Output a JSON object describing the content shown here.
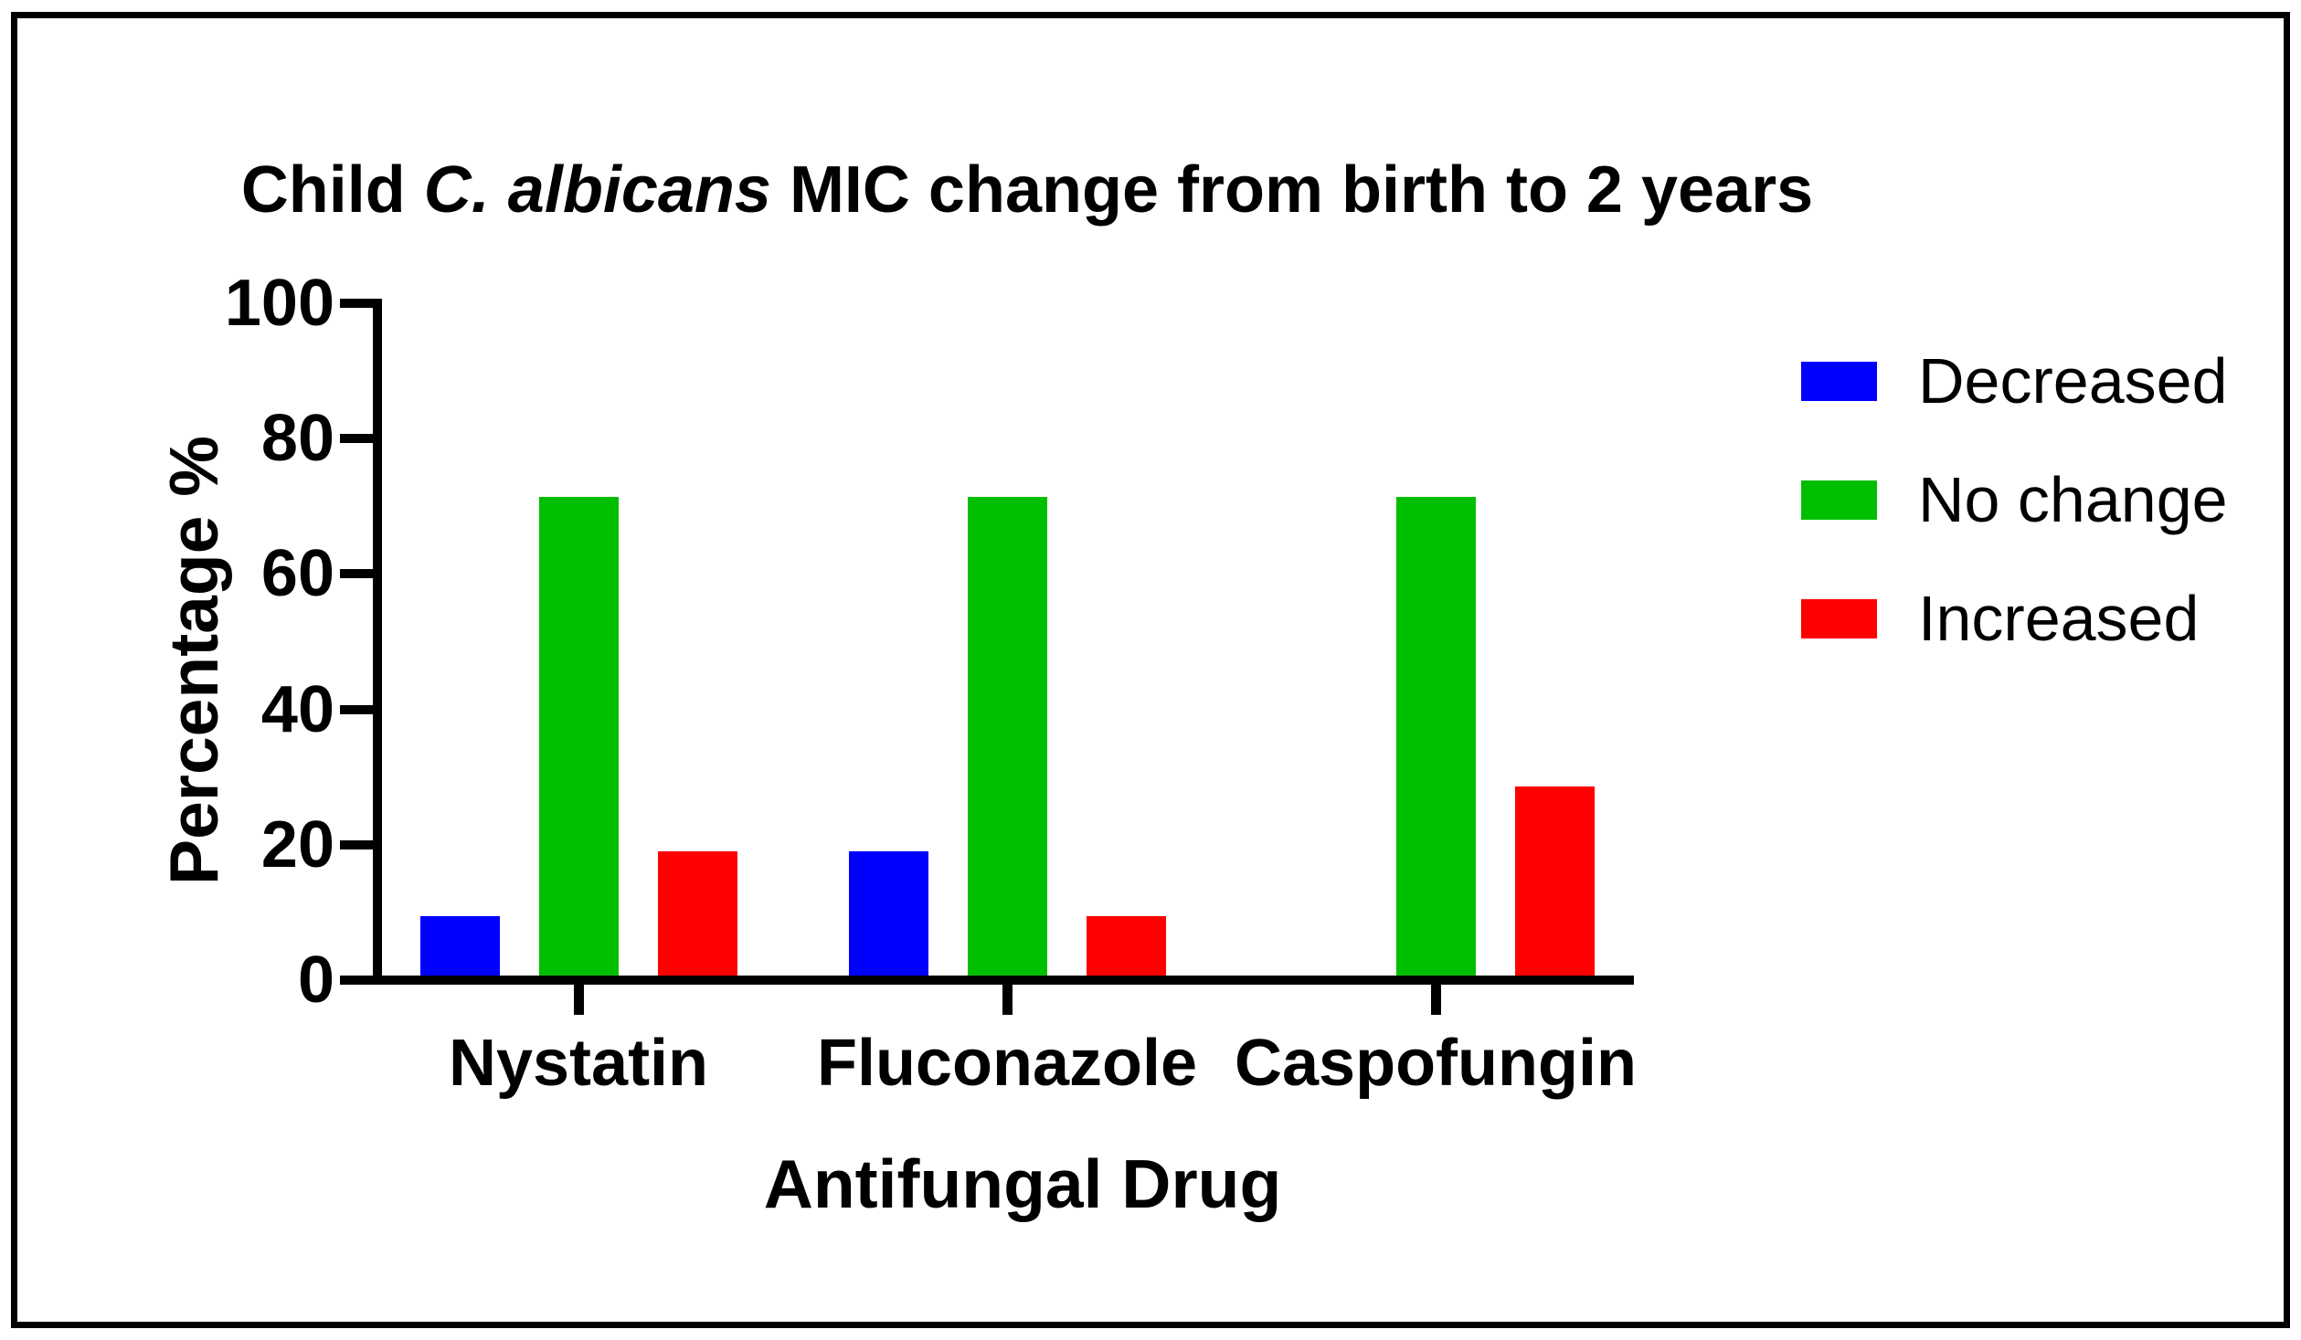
{
  "title": {
    "prefix": "Child ",
    "italic": "C. albicans",
    "suffix": " MIC change from birth to 2 years"
  },
  "chart_data": {
    "type": "bar",
    "title": "Child C. albicans MIC change from birth to 2 years",
    "categories": [
      "Nystatin",
      "Fluconazole",
      "Caspofungin"
    ],
    "series": [
      {
        "name": "Decreased",
        "color": "#0000FF",
        "values": [
          9.5,
          19.0,
          0
        ]
      },
      {
        "name": "No change",
        "color": "#00BE00",
        "values": [
          71.4,
          71.4,
          71.4
        ]
      },
      {
        "name": "Increased",
        "color": "#FF0000",
        "values": [
          19.0,
          9.5,
          28.6
        ]
      }
    ],
    "xlabel": "Antifungal Drug",
    "ylabel": "Percentage %",
    "ylim": [
      0,
      100
    ],
    "yticks": [
      0,
      20,
      40,
      60,
      80,
      100
    ],
    "grid": false,
    "legend_position": "right",
    "plot_background": "#FFFFFF",
    "axis_color": "#000000"
  }
}
